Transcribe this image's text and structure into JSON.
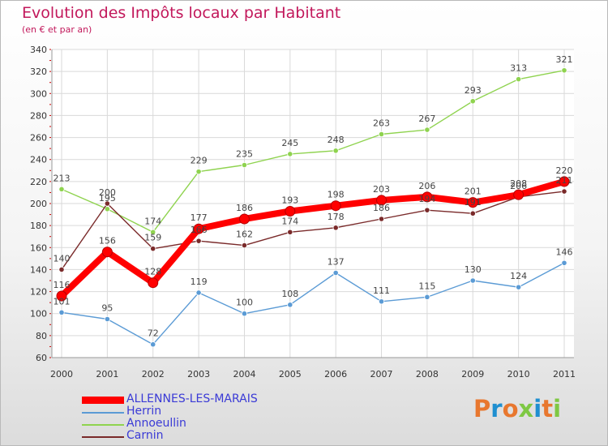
{
  "chart_data": {
    "type": "line",
    "title": "Evolution des Impôts locaux par Habitant",
    "subtitle": "(en € et par an)",
    "xlabel": "",
    "ylabel": "",
    "x": [
      "2000",
      "2001",
      "2002",
      "2003",
      "2004",
      "2005",
      "2006",
      "2007",
      "2008",
      "2009",
      "2010",
      "2011"
    ],
    "ylim": [
      60,
      340
    ],
    "yticks": [
      60,
      80,
      100,
      120,
      140,
      160,
      180,
      200,
      220,
      240,
      260,
      280,
      300,
      320,
      340
    ],
    "grid": true,
    "legend_position": "bottom-left",
    "series": [
      {
        "name": "ALLENNES-LES-MARAIS",
        "color": "#ff0000",
        "values": [
          116,
          156,
          128,
          177,
          186,
          193,
          198,
          203,
          206,
          201,
          208,
          220
        ]
      },
      {
        "name": "Herrin",
        "color": "#5b9bd5",
        "values": [
          101,
          95,
          72,
          119,
          100,
          108,
          137,
          111,
          115,
          130,
          124,
          146
        ]
      },
      {
        "name": "Annoeullin",
        "color": "#8fd34f",
        "values": [
          213,
          195,
          174,
          229,
          235,
          245,
          248,
          263,
          267,
          293,
          313,
          321
        ]
      },
      {
        "name": "Carnin",
        "color": "#7a2a2a",
        "values": [
          140,
          200,
          159,
          166,
          162,
          174,
          178,
          186,
          194,
          191,
          206,
          211
        ]
      }
    ]
  },
  "logo": {
    "text": "Proxiti",
    "colors": [
      "#e8772e",
      "#1f8fd0",
      "#e8772e",
      "#7ec843",
      "#1f8fd0",
      "#e8772e",
      "#7ec843"
    ]
  }
}
